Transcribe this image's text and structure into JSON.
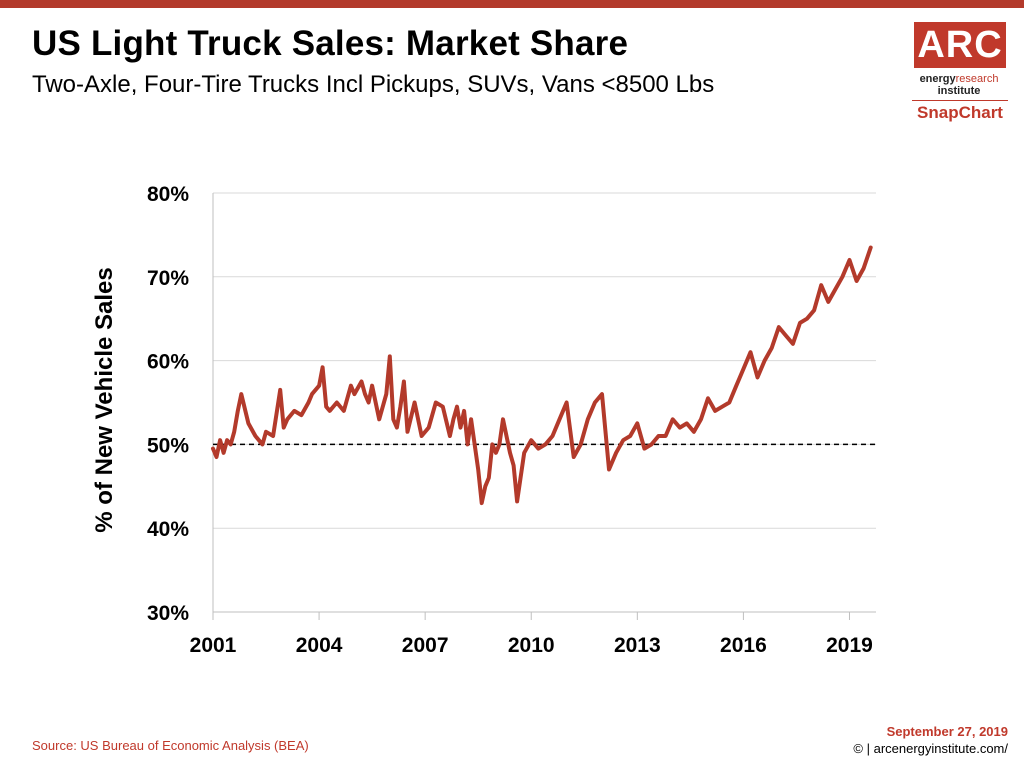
{
  "header": {
    "title": "US Light Truck Sales: Market Share",
    "subtitle": "Two-Axle, Four-Tire Trucks Incl Pickups, SUVs, Vans <8500 Lbs"
  },
  "logo": {
    "main": "ARC",
    "line1_a": "energy",
    "line1_b": "research",
    "line2": "institute",
    "snap": "SnapChart"
  },
  "footer": {
    "source": "Source: US Bureau of Economic Analysis (BEA)",
    "date": "September 27, 2019",
    "copyright": "© | arcenergyinstitute.com/"
  },
  "colors": {
    "series": "#b33a2b",
    "accent": "#c0392b",
    "reference_line": "#000000"
  },
  "chart_data": {
    "type": "line",
    "ylabel": "% of New Vehicle Sales",
    "xlabel": "",
    "ylim": [
      30,
      80
    ],
    "xlim": [
      2001,
      2019.75
    ],
    "yticks": [
      30,
      40,
      50,
      60,
      70,
      80
    ],
    "ytick_labels": [
      "30%",
      "40%",
      "50%",
      "60%",
      "70%",
      "80%"
    ],
    "xticks": [
      2001,
      2004,
      2007,
      2010,
      2013,
      2016,
      2019
    ],
    "xtick_labels": [
      "2001",
      "2004",
      "2007",
      "2010",
      "2013",
      "2016",
      "2019"
    ],
    "grid": "horizontal",
    "reference_line": {
      "y": 50,
      "style": "dashed"
    },
    "series": [
      {
        "x": [
          2001.0,
          2001.1,
          2001.2,
          2001.3,
          2001.4,
          2001.5,
          2001.6,
          2001.7,
          2001.8,
          2002.0,
          2002.2,
          2002.4,
          2002.5,
          2002.7,
          2002.9,
          2003.0,
          2003.1,
          2003.3,
          2003.5,
          2003.7,
          2003.8,
          2004.0,
          2004.1,
          2004.2,
          2004.3,
          2004.5,
          2004.7,
          2004.9,
          2005.0,
          2005.2,
          2005.3,
          2005.4,
          2005.5,
          2005.7,
          2005.9,
          2006.0,
          2006.1,
          2006.2,
          2006.3,
          2006.4,
          2006.5,
          2006.7,
          2006.9,
          2007.1,
          2007.3,
          2007.5,
          2007.7,
          2007.8,
          2007.9,
          2008.0,
          2008.1,
          2008.2,
          2008.3,
          2008.5,
          2008.6,
          2008.7,
          2008.8,
          2008.9,
          2009.0,
          2009.1,
          2009.2,
          2009.4,
          2009.5,
          2009.6,
          2009.8,
          2010.0,
          2010.2,
          2010.4,
          2010.6,
          2010.8,
          2011.0,
          2011.2,
          2011.4,
          2011.6,
          2011.8,
          2012.0,
          2012.2,
          2012.4,
          2012.6,
          2012.8,
          2013.0,
          2013.2,
          2013.4,
          2013.6,
          2013.8,
          2014.0,
          2014.2,
          2014.4,
          2014.6,
          2014.8,
          2015.0,
          2015.2,
          2015.4,
          2015.6,
          2015.8,
          2016.0,
          2016.2,
          2016.4,
          2016.6,
          2016.8,
          2017.0,
          2017.2,
          2017.4,
          2017.6,
          2017.8,
          2018.0,
          2018.2,
          2018.4,
          2018.6,
          2018.8,
          2019.0,
          2019.2,
          2019.4,
          2019.6
        ],
        "y": [
          49.5,
          48.5,
          50.5,
          49.0,
          50.5,
          50.0,
          51.5,
          54.0,
          56.0,
          52.5,
          51.0,
          50.0,
          51.5,
          51.0,
          56.5,
          52.0,
          53.0,
          54.0,
          53.5,
          55.0,
          56.0,
          57.0,
          59.2,
          54.5,
          54.0,
          55.0,
          54.0,
          57.0,
          56.0,
          57.5,
          56.0,
          55.0,
          57.0,
          53.0,
          56.0,
          60.5,
          53.0,
          52.0,
          54.5,
          57.5,
          51.5,
          55.0,
          51.0,
          52.0,
          55.0,
          54.5,
          51.0,
          53.0,
          54.5,
          52.0,
          54.0,
          50.0,
          53.0,
          47.0,
          43.0,
          45.0,
          46.0,
          50.0,
          49.0,
          50.0,
          53.0,
          49.0,
          47.5,
          43.2,
          49.0,
          50.5,
          49.5,
          50.0,
          51.0,
          53.0,
          55.0,
          48.5,
          50.0,
          53.0,
          55.0,
          56.0,
          47.0,
          49.0,
          50.5,
          51.0,
          52.5,
          49.5,
          50.0,
          51.0,
          51.0,
          53.0,
          52.0,
          52.5,
          51.5,
          53.0,
          55.5,
          54.0,
          54.5,
          55.0,
          57.0,
          59.0,
          61.0,
          58.0,
          60.0,
          61.5,
          64.0,
          63.0,
          62.0,
          64.5,
          65.0,
          66.0,
          69.0,
          67.0,
          68.5,
          70.0,
          72.0,
          69.5,
          71.0,
          73.5
        ]
      }
    ]
  }
}
